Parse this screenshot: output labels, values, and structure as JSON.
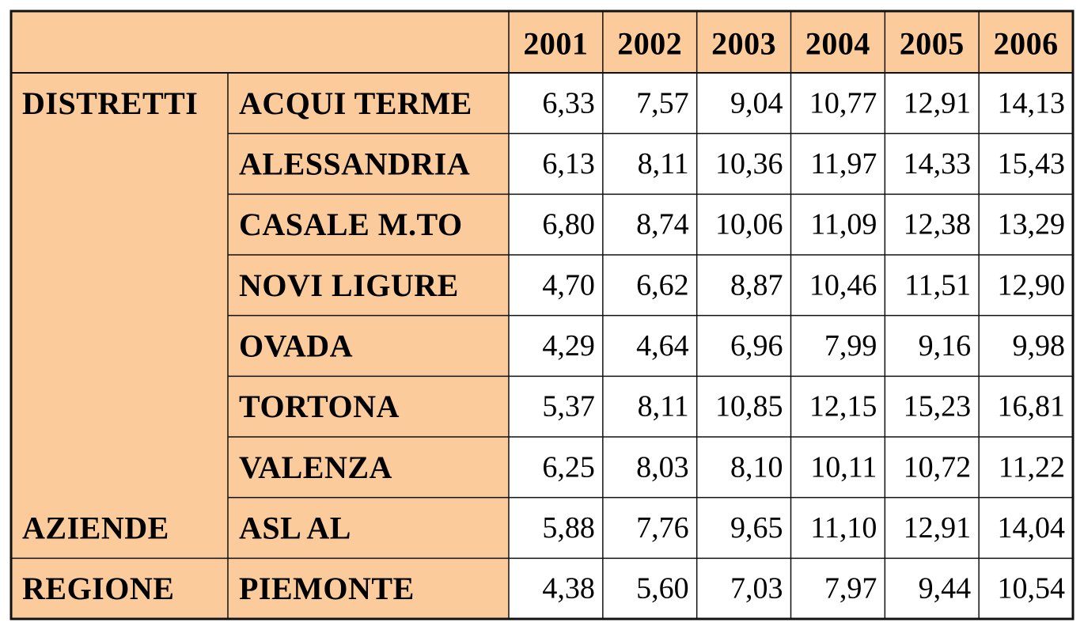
{
  "table": {
    "columns": [
      "2001",
      "2002",
      "2003",
      "2004",
      "2005",
      "2006"
    ],
    "groups": [
      {
        "label": "DISTRETTI",
        "rows": [
          {
            "name": "ACQUI TERME",
            "values": [
              "6,33",
              "7,57",
              "9,04",
              "10,77",
              "12,91",
              "14,13"
            ]
          },
          {
            "name": "ALESSANDRIA",
            "values": [
              "6,13",
              "8,11",
              "10,36",
              "11,97",
              "14,33",
              "15,43"
            ]
          },
          {
            "name": "CASALE M.TO",
            "values": [
              "6,80",
              "8,74",
              "10,06",
              "11,09",
              "12,38",
              "13,29"
            ]
          },
          {
            "name": "NOVI LIGURE",
            "values": [
              "4,70",
              "6,62",
              "8,87",
              "10,46",
              "11,51",
              "12,90"
            ]
          },
          {
            "name": "OVADA",
            "values": [
              "4,29",
              "4,64",
              "6,96",
              "7,99",
              "9,16",
              "9,98"
            ]
          },
          {
            "name": "TORTONA",
            "values": [
              "5,37",
              "8,11",
              "10,85",
              "12,15",
              "15,23",
              "16,81"
            ]
          },
          {
            "name": "VALENZA",
            "values": [
              "6,25",
              "8,03",
              "8,10",
              "10,11",
              "10,72",
              "11,22"
            ]
          }
        ]
      },
      {
        "label": "AZIENDE",
        "rows": [
          {
            "name": "ASL AL",
            "values": [
              "5,88",
              "7,76",
              "9,65",
              "11,10",
              "12,91",
              "14,04"
            ]
          }
        ]
      },
      {
        "label": "REGIONE",
        "rows": [
          {
            "name": "PIEMONTE",
            "values": [
              "4,38",
              "5,60",
              "7,03",
              "7,97",
              "9,44",
              "10,54"
            ]
          }
        ]
      }
    ]
  }
}
